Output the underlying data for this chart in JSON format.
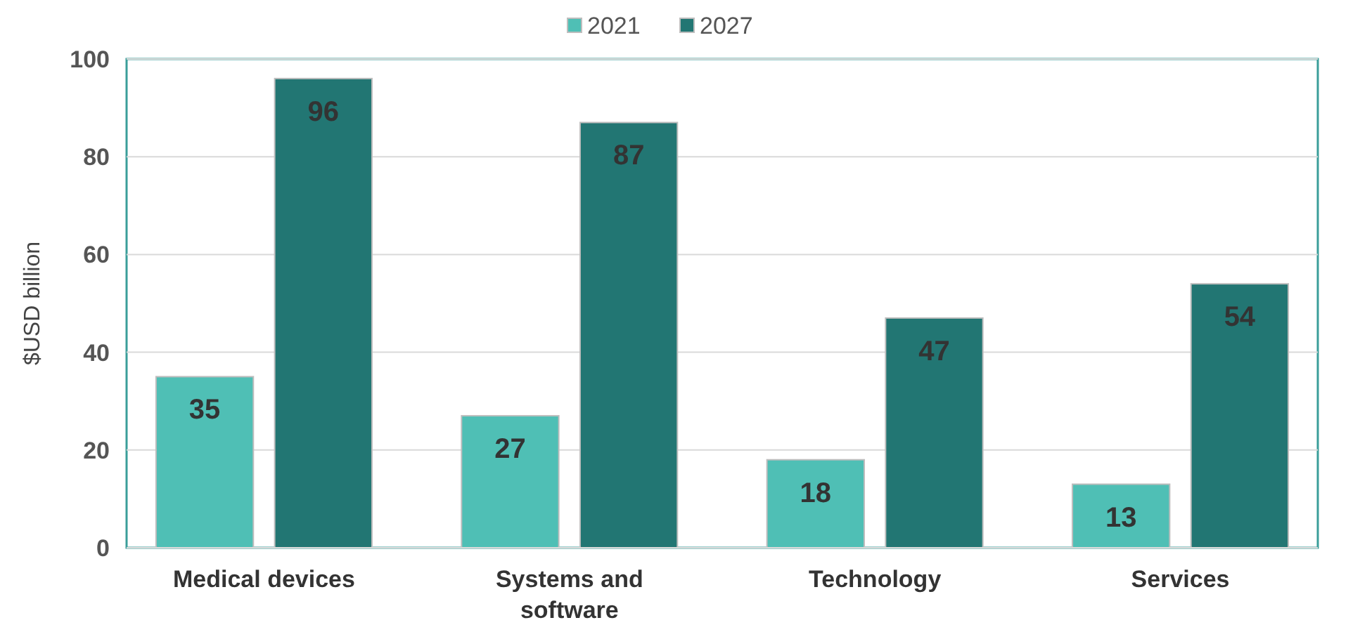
{
  "chart_data": {
    "type": "bar",
    "ylabel": "$USD billion",
    "categories": [
      "Medical devices",
      "Systems and software",
      "Technology",
      "Services"
    ],
    "series": [
      {
        "name": "2021",
        "color": "#4fbfb5",
        "values": [
          35,
          27,
          18,
          13
        ]
      },
      {
        "name": "2027",
        "color": "#227673",
        "values": [
          96,
          87,
          47,
          54
        ]
      }
    ],
    "ylim": [
      0,
      100
    ],
    "yticks": [
      0,
      20,
      40,
      60,
      80,
      100
    ],
    "grid": "y",
    "legend": "top",
    "data_labels": true
  }
}
